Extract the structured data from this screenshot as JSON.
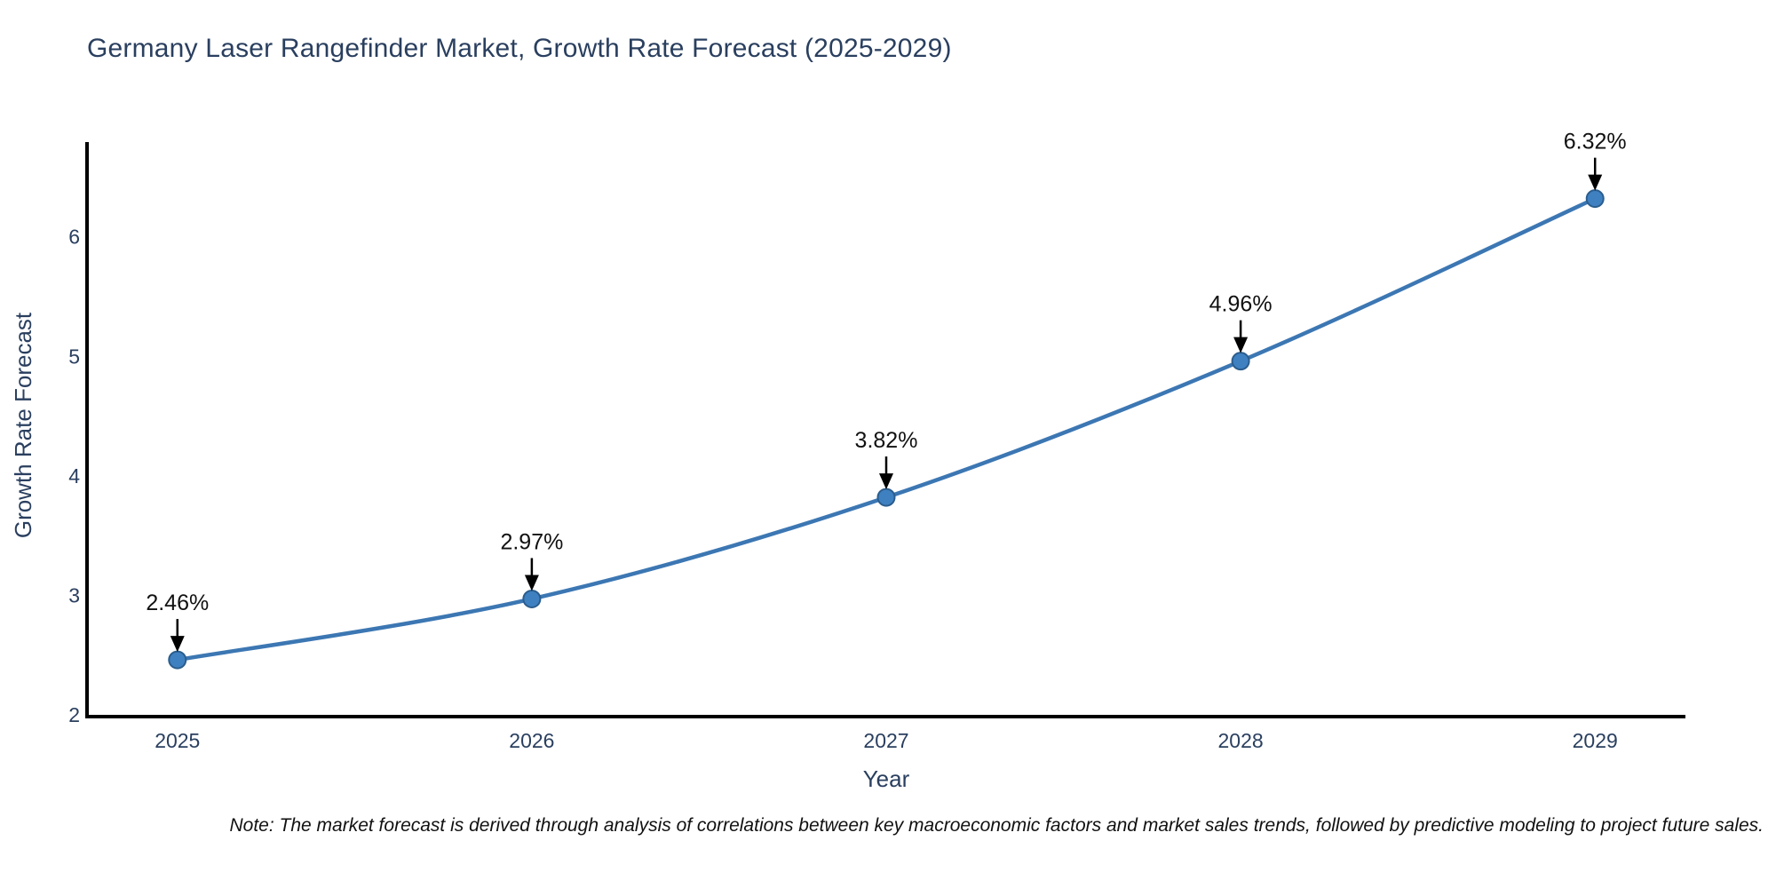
{
  "chart_data": {
    "type": "line",
    "title": "Germany Laser Rangefinder Market, Growth Rate Forecast (2025-2029)",
    "xlabel": "Year",
    "ylabel": "Growth Rate Forecast",
    "x": [
      2025,
      2026,
      2027,
      2028,
      2029
    ],
    "y": [
      2.46,
      2.97,
      3.82,
      4.96,
      6.32
    ],
    "point_labels": [
      "2.46%",
      "2.97%",
      "3.82%",
      "4.96%",
      "6.32%"
    ],
    "x_tick_labels": [
      "2025",
      "2026",
      "2027",
      "2028",
      "2029"
    ],
    "y_tick_labels": [
      "2",
      "3",
      "4",
      "5",
      "6"
    ],
    "y_ticks": [
      2,
      3,
      4,
      5,
      6
    ],
    "xlim": [
      2024.745,
      2029.255
    ],
    "ylim": [
      2,
      6.83
    ],
    "grid": false,
    "legend_position": "none",
    "line_shape": "spline",
    "colors": {
      "line": "#3c77b3",
      "marker_fill": "#3f80c1",
      "marker_edge": "#2b5d8d",
      "axis": "#000000",
      "tick_text": "#2a3f5f",
      "title_text": "#2a3f5f",
      "annotation_text": "#111111",
      "arrow": "#000000"
    },
    "note": "Note: The market forecast is derived through analysis of correlations between key macroeconomic factors and market sales trends, followed by predictive modeling to project future sales."
  }
}
